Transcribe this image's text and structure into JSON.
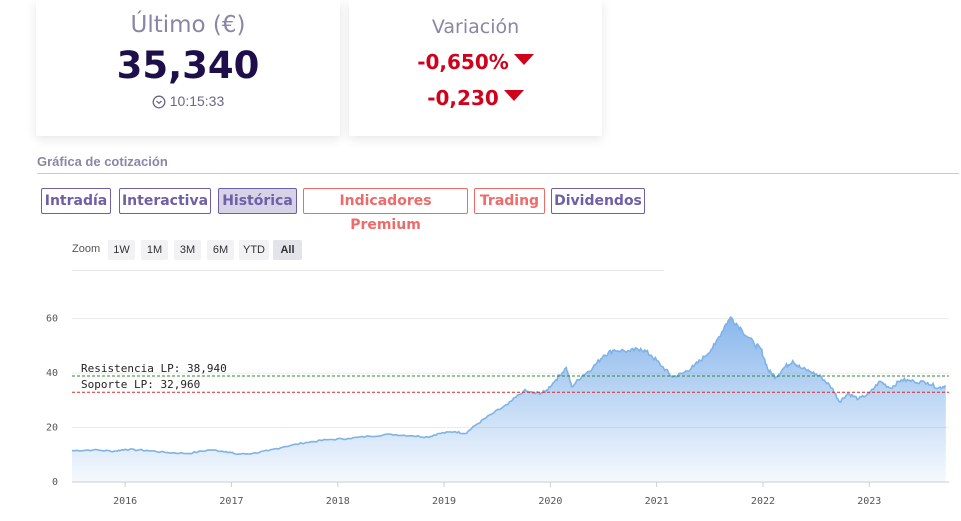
{
  "quote": {
    "last_label": "Último (€)",
    "last_value": "35,340",
    "time": "10:15:33",
    "variation_label": "Variación",
    "variation_pct": "-0,650%",
    "variation_abs": "-0,230",
    "down_color": "#d0021b"
  },
  "section": {
    "title": "Gráfica de cotización"
  },
  "tabs": [
    {
      "label": "Intradía"
    },
    {
      "label": "Interactiva"
    },
    {
      "label": "Histórica"
    },
    {
      "label": "Indicadores Premium"
    },
    {
      "label": "Trading"
    },
    {
      "label": "Dividendos"
    }
  ],
  "zoom": {
    "label": "Zoom",
    "buttons": [
      "1W",
      "1M",
      "3M",
      "6M",
      "YTD",
      "All"
    ],
    "selected": "All"
  },
  "chart_data": {
    "type": "area",
    "title": "",
    "xlabel": "",
    "ylabel": "",
    "ylim": [
      0,
      65
    ],
    "xlim": [
      2015.5,
      2023.75
    ],
    "yticks": [
      0,
      20,
      40,
      60
    ],
    "xticks": [
      "2016",
      "2017",
      "2018",
      "2019",
      "2020",
      "2021",
      "2022",
      "2023"
    ],
    "grid": true,
    "series": [
      {
        "points": [
          [
            2015.5,
            11.5
          ],
          [
            2015.7,
            11.8
          ],
          [
            2015.9,
            11.3
          ],
          [
            2016.0,
            12.0
          ],
          [
            2016.2,
            11.6
          ],
          [
            2016.4,
            10.8
          ],
          [
            2016.6,
            10.5
          ],
          [
            2016.8,
            11.8
          ],
          [
            2016.95,
            11.2
          ],
          [
            2017.05,
            10.2
          ],
          [
            2017.2,
            10.5
          ],
          [
            2017.35,
            11.5
          ],
          [
            2017.5,
            13.0
          ],
          [
            2017.7,
            14.5
          ],
          [
            2017.9,
            15.5
          ],
          [
            2018.1,
            16.0
          ],
          [
            2018.3,
            16.8
          ],
          [
            2018.5,
            17.5
          ],
          [
            2018.7,
            17.0
          ],
          [
            2018.85,
            16.5
          ],
          [
            2018.95,
            17.8
          ],
          [
            2019.1,
            18.5
          ],
          [
            2019.2,
            17.8
          ],
          [
            2019.3,
            21.0
          ],
          [
            2019.45,
            25.0
          ],
          [
            2019.6,
            28.5
          ],
          [
            2019.75,
            33.5
          ],
          [
            2019.85,
            32.5
          ],
          [
            2019.95,
            33.0
          ],
          [
            2020.05,
            37.5
          ],
          [
            2020.15,
            42.0
          ],
          [
            2020.2,
            35.0
          ],
          [
            2020.3,
            39.0
          ],
          [
            2020.4,
            42.0
          ],
          [
            2020.5,
            46.5
          ],
          [
            2020.6,
            48.5
          ],
          [
            2020.75,
            48.0
          ],
          [
            2020.85,
            49.0
          ],
          [
            2020.95,
            46.5
          ],
          [
            2021.05,
            42.5
          ],
          [
            2021.15,
            38.5
          ],
          [
            2021.25,
            40.0
          ],
          [
            2021.35,
            42.5
          ],
          [
            2021.45,
            46.0
          ],
          [
            2021.55,
            50.5
          ],
          [
            2021.65,
            58.0
          ],
          [
            2021.7,
            60.5
          ],
          [
            2021.8,
            56.0
          ],
          [
            2021.92,
            50.5
          ],
          [
            2021.98,
            49.0
          ],
          [
            2022.05,
            41.0
          ],
          [
            2022.12,
            38.5
          ],
          [
            2022.2,
            42.0
          ],
          [
            2022.28,
            44.5
          ],
          [
            2022.35,
            42.0
          ],
          [
            2022.45,
            40.5
          ],
          [
            2022.55,
            38.5
          ],
          [
            2022.65,
            34.5
          ],
          [
            2022.72,
            29.5
          ],
          [
            2022.8,
            32.5
          ],
          [
            2022.9,
            30.5
          ],
          [
            2023.0,
            32.5
          ],
          [
            2023.1,
            37.0
          ],
          [
            2023.2,
            34.5
          ],
          [
            2023.3,
            37.5
          ],
          [
            2023.42,
            37.0
          ],
          [
            2023.55,
            36.5
          ],
          [
            2023.65,
            34.5
          ],
          [
            2023.72,
            35.34
          ]
        ]
      }
    ],
    "levels": [
      {
        "label": "Resistencia LP: 38,940",
        "value": 38.94,
        "color": "#2e8b2e"
      },
      {
        "label": "Soporte LP: 32,960",
        "value": 32.96,
        "color": "#d12a2a"
      }
    ],
    "line_color": "#7fb3e6",
    "fill_color": "#4a90e2"
  }
}
